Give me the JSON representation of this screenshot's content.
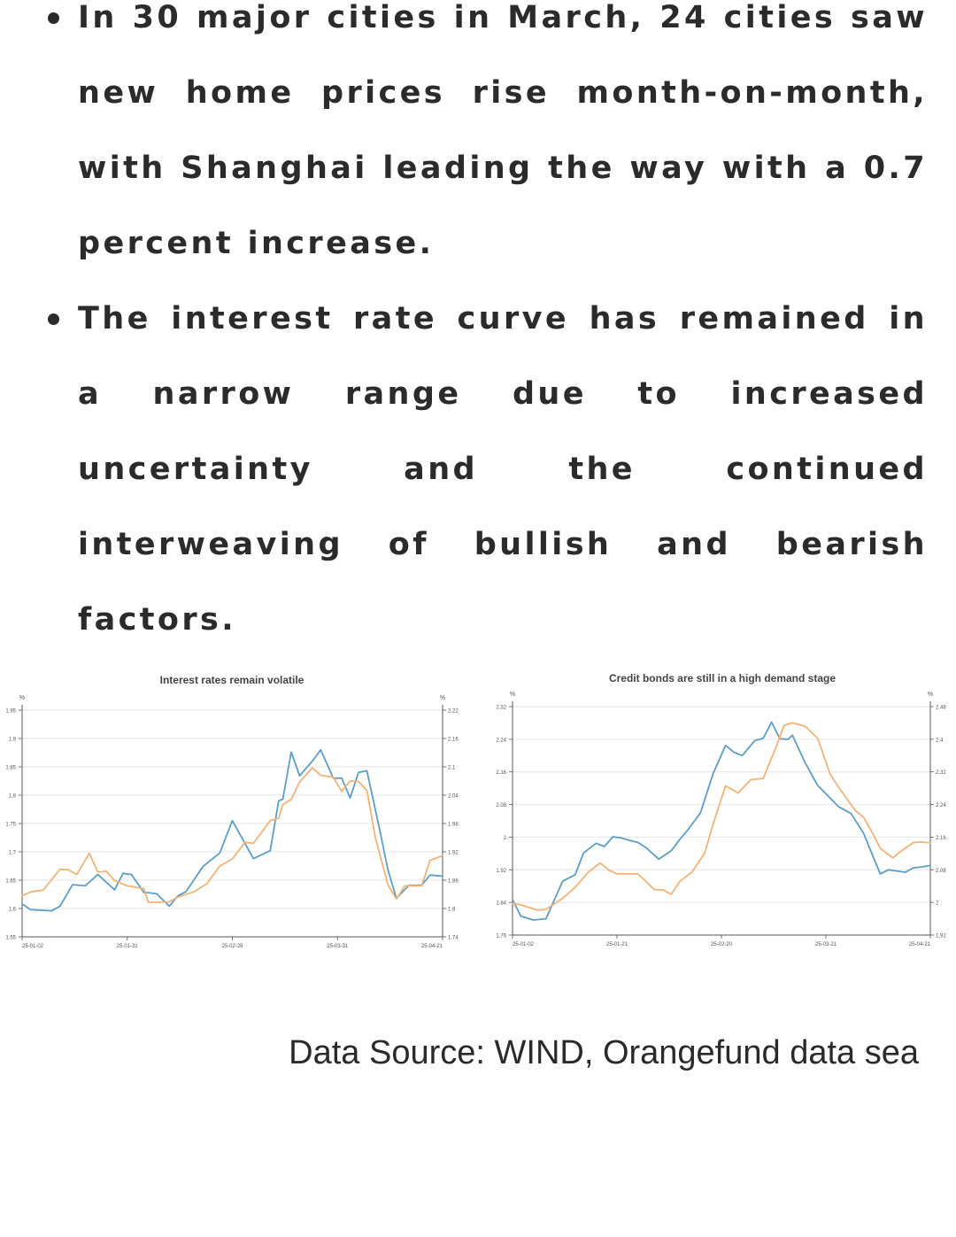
{
  "bullets": [
    {
      "text": "In 30 major cities in March, 24 cities saw new home prices rise month-on-month, with Shanghai leading the way with a 0.7 percent increase."
    },
    {
      "text": "The interest rate curve has remained in a narrow range due to increased uncertainty and the continued interweaving of bullish and bearish factors."
    }
  ],
  "source_text": "Data Source: WIND, Orangefund data sea",
  "colors": {
    "series_blue": "#5b9ec9",
    "series_orange": "#f5b274",
    "grid": "#e6e6e6",
    "axis": "#555555"
  },
  "chart_data": [
    {
      "type": "line",
      "title": "Interest rates remain volatile",
      "y_unit_left": "%",
      "y_unit_right": "%",
      "y_left": {
        "ticks": [
          "1.55",
          "1.6",
          "1.65",
          "1.7",
          "1.75",
          "1.8",
          "1.85",
          "1.9",
          "1.95"
        ],
        "ylim": [
          1.55,
          1.95
        ]
      },
      "y_right": {
        "ticks": [
          "1.74",
          "1.8",
          "1.86",
          "1.92",
          "1.98",
          "2.04",
          "2.1",
          "2.16",
          "2.22"
        ],
        "ylim": [
          1.74,
          2.22
        ]
      },
      "x_ticks": [
        "25-01-02",
        "25-01-31",
        "25-02-28",
        "25-03-31",
        "25-04-21"
      ],
      "grid": true,
      "x_count": 100,
      "series": [
        {
          "axis": "left",
          "color": "#5b9ec9",
          "x": [
            0,
            2,
            7,
            9,
            12,
            15,
            18,
            22,
            24,
            26,
            29,
            30,
            32,
            35,
            37,
            39,
            43,
            47,
            50,
            55,
            59,
            61,
            62,
            64,
            66,
            69,
            71,
            74,
            76,
            78,
            80,
            82,
            85,
            87,
            89,
            92,
            95,
            97,
            100
          ],
          "values": [
            1.608,
            1.598,
            1.596,
            1.604,
            1.642,
            1.64,
            1.66,
            1.633,
            1.662,
            1.66,
            1.628,
            1.628,
            1.626,
            1.604,
            1.622,
            1.63,
            1.674,
            1.698,
            1.755,
            1.688,
            1.702,
            1.79,
            1.793,
            1.876,
            1.834,
            1.86,
            1.88,
            1.83,
            1.83,
            1.795,
            1.84,
            1.843,
            1.74,
            1.668,
            1.618,
            1.641,
            1.641,
            1.659,
            1.657
          ]
        },
        {
          "axis": "right",
          "color": "#f5b274",
          "x": [
            0,
            2,
            5,
            9,
            11,
            13,
            16,
            18,
            20,
            22,
            25,
            29,
            30,
            32,
            35,
            37,
            41,
            44,
            47,
            50,
            53,
            55,
            58,
            59,
            61,
            62,
            64,
            66,
            69,
            71,
            74,
            76,
            78,
            80,
            82,
            84,
            87,
            89,
            91,
            95,
            97,
            100
          ],
          "values": [
            1.827,
            1.835,
            1.839,
            1.883,
            1.882,
            1.872,
            1.917,
            1.877,
            1.879,
            1.859,
            1.848,
            1.842,
            1.813,
            1.813,
            1.814,
            1.824,
            1.836,
            1.853,
            1.89,
            1.905,
            1.94,
            1.938,
            1.974,
            1.986,
            1.991,
            2.02,
            2.031,
            2.068,
            2.098,
            2.082,
            2.078,
            2.048,
            2.07,
            2.069,
            2.05,
            1.95,
            1.85,
            1.82,
            1.848,
            1.848,
            1.902,
            1.912
          ]
        }
      ]
    },
    {
      "type": "line",
      "title": "Credit bonds are still in a high demand stage",
      "y_unit_left": "%",
      "y_unit_right": "%",
      "y_left": {
        "ticks": [
          "1.76",
          "1.84",
          "1.92",
          "2",
          "2.08",
          "2.16",
          "2.24",
          "2.32"
        ],
        "ylim": [
          1.76,
          2.32
        ]
      },
      "y_right": {
        "ticks": [
          "1.92",
          "2",
          "2.08",
          "2.16",
          "2.24",
          "2.32",
          "2.4",
          "2.48"
        ],
        "ylim": [
          1.92,
          2.48
        ]
      },
      "x_ticks": [
        "25-01-02",
        "25-01-21",
        "25-02-20",
        "25-03-21",
        "25-04-21"
      ],
      "grid": true,
      "x_count": 100,
      "series": [
        {
          "axis": "left",
          "color": "#5b9ec9",
          "x": [
            0,
            2,
            5,
            8,
            12,
            15,
            17,
            20,
            22,
            24,
            26,
            28,
            30,
            32,
            35,
            38,
            40,
            42,
            45,
            48,
            51,
            53,
            55,
            58,
            60,
            62,
            64,
            66,
            67,
            70,
            73,
            76,
            78,
            81,
            84,
            86,
            88,
            90,
            94,
            96,
            98,
            100
          ],
          "values": [
            1.847,
            1.806,
            1.797,
            1.8,
            1.892,
            1.908,
            1.961,
            1.985,
            1.977,
            2.001,
            1.998,
            1.992,
            1.987,
            1.974,
            1.946,
            1.967,
            1.994,
            2.018,
            2.06,
            2.156,
            2.225,
            2.208,
            2.2,
            2.237,
            2.242,
            2.282,
            2.241,
            2.24,
            2.25,
            2.183,
            2.127,
            2.096,
            2.075,
            2.058,
            2.01,
            1.96,
            1.91,
            1.92,
            1.914,
            1.925,
            1.927,
            1.931
          ]
        },
        {
          "axis": "right",
          "color": "#f5b274",
          "x": [
            0,
            2,
            6,
            8,
            12,
            15,
            18,
            21,
            23,
            25,
            27,
            30,
            34,
            36,
            38,
            40,
            43,
            46,
            48,
            51,
            54,
            57,
            60,
            63,
            65,
            67,
            70,
            73,
            76,
            78,
            82,
            84,
            86,
            88,
            91,
            93,
            96,
            98,
            100
          ],
          "values": [
            1.998,
            1.994,
            1.981,
            1.983,
            2.01,
            2.037,
            2.073,
            2.097,
            2.079,
            2.07,
            2.07,
            2.07,
            2.031,
            2.031,
            2.02,
            2.051,
            2.075,
            2.121,
            2.192,
            2.286,
            2.268,
            2.301,
            2.304,
            2.379,
            2.434,
            2.44,
            2.432,
            2.403,
            2.315,
            2.283,
            2.226,
            2.209,
            2.173,
            2.133,
            2.109,
            2.126,
            2.147,
            2.148,
            2.146
          ]
        }
      ]
    }
  ]
}
